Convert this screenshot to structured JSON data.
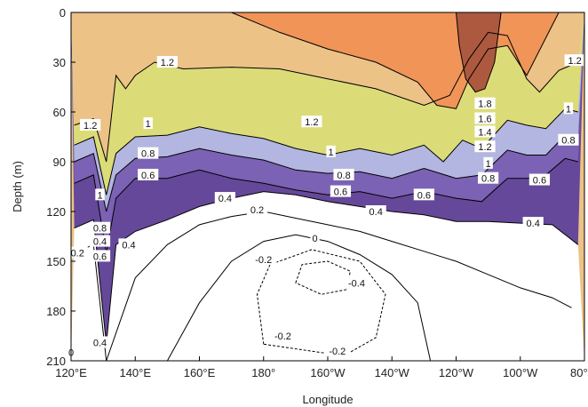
{
  "chart_data": {
    "type": "heatmap",
    "subtype": "filled-contour depth-longitude section",
    "title": "",
    "xlabel": "Longitude",
    "ylabel": "Depth (m)",
    "x_ticks": [
      "120°E",
      "140°E",
      "160°E",
      "180°",
      "160°W",
      "140°W",
      "120°W",
      "100°W",
      "80°W"
    ],
    "y_ticks": [
      "0",
      "30",
      "60",
      "90",
      "120",
      "150",
      "180",
      "210"
    ],
    "xlim_deg_east": [
      120,
      280
    ],
    "ylim_m": [
      0,
      210
    ],
    "y_inverted": true,
    "grid": false,
    "legend": "none",
    "fill_levels": [
      {
        "min": 0.6,
        "max": 0.8,
        "color": "#66489a"
      },
      {
        "min": 0.8,
        "max": 1.0,
        "color": "#7b62b4"
      },
      {
        "min": 1.0,
        "max": 1.2,
        "color": "#b3b6e0"
      },
      {
        "min": 1.2,
        "max": 1.4,
        "color": "#dbdc78"
      },
      {
        "min": 1.4,
        "max": 1.6,
        "color": "#ecc287"
      },
      {
        "min": 1.6,
        "max": 1.8,
        "color": "#f09458"
      },
      {
        "min": 1.8,
        "max": 2.2,
        "color": "#ad5940"
      }
    ],
    "contour_lines": [
      {
        "level": 1.2,
        "depth_by_longitude": [
          [
            121,
            68
          ],
          [
            127,
            64
          ],
          [
            131,
            90
          ],
          [
            134,
            38
          ],
          [
            137,
            46
          ],
          [
            140,
            38
          ],
          [
            146,
            30
          ],
          [
            155,
            34
          ],
          [
            170,
            33
          ],
          [
            185,
            34
          ],
          [
            200,
            40
          ],
          [
            215,
            46
          ],
          [
            230,
            56
          ],
          [
            238,
            50
          ],
          [
            244,
            28
          ],
          [
            250,
            12
          ],
          [
            256,
            14
          ],
          [
            262,
            40
          ],
          [
            266,
            48
          ],
          [
            272,
            35
          ],
          [
            278,
            30
          ]
        ]
      },
      {
        "level": 1.0,
        "depth_by_longitude": [
          [
            121,
            80
          ],
          [
            127,
            75
          ],
          [
            131,
            110
          ],
          [
            134,
            85
          ],
          [
            140,
            75
          ],
          [
            150,
            74
          ],
          [
            160,
            69
          ],
          [
            170,
            73
          ],
          [
            180,
            76
          ],
          [
            190,
            82
          ],
          [
            200,
            86
          ],
          [
            210,
            82
          ],
          [
            220,
            86
          ],
          [
            230,
            80
          ],
          [
            236,
            90
          ],
          [
            242,
            77
          ],
          [
            248,
            82
          ],
          [
            256,
            65
          ],
          [
            262,
            68
          ],
          [
            268,
            70
          ],
          [
            274,
            58
          ],
          [
            278,
            60
          ]
        ]
      },
      {
        "level": 0.8,
        "depth_by_longitude": [
          [
            121,
            90
          ],
          [
            127,
            85
          ],
          [
            131,
            120
          ],
          [
            134,
            98
          ],
          [
            140,
            88
          ],
          [
            150,
            87
          ],
          [
            160,
            82
          ],
          [
            170,
            86
          ],
          [
            180,
            89
          ],
          [
            190,
            95
          ],
          [
            200,
            97
          ],
          [
            210,
            96
          ],
          [
            220,
            100
          ],
          [
            230,
            94
          ],
          [
            240,
            100
          ],
          [
            248,
            98
          ],
          [
            256,
            83
          ],
          [
            262,
            86
          ],
          [
            268,
            86
          ],
          [
            274,
            74
          ],
          [
            278,
            76
          ]
        ]
      },
      {
        "level": 0.6,
        "depth_by_longitude": [
          [
            121,
            103
          ],
          [
            127,
            98
          ],
          [
            131,
            145
          ],
          [
            134,
            112
          ],
          [
            140,
            100
          ],
          [
            150,
            100
          ],
          [
            160,
            95
          ],
          [
            170,
            100
          ],
          [
            180,
            103
          ],
          [
            190,
            107
          ],
          [
            200,
            110
          ],
          [
            210,
            108
          ],
          [
            220,
            112
          ],
          [
            230,
            108
          ],
          [
            240,
            112
          ],
          [
            248,
            114
          ],
          [
            256,
            100
          ],
          [
            262,
            100
          ],
          [
            268,
            98
          ],
          [
            274,
            88
          ],
          [
            278,
            90
          ]
        ]
      },
      {
        "level": 0.4,
        "depth_by_longitude": [
          [
            121,
            130
          ],
          [
            127,
            125
          ],
          [
            131,
            200
          ],
          [
            134,
            140
          ],
          [
            140,
            132
          ],
          [
            150,
            125
          ],
          [
            160,
            117
          ],
          [
            170,
            112
          ],
          [
            180,
            108
          ],
          [
            190,
            110
          ],
          [
            200,
            114
          ],
          [
            210,
            117
          ],
          [
            220,
            120
          ],
          [
            230,
            122
          ],
          [
            240,
            126
          ],
          [
            250,
            126
          ],
          [
            260,
            127
          ],
          [
            270,
            128
          ],
          [
            278,
            140
          ]
        ]
      },
      {
        "level": 0.2,
        "depth_by_longitude": [
          [
            121,
            145
          ],
          [
            127,
            140
          ],
          [
            131,
            210
          ],
          [
            140,
            160
          ],
          [
            150,
            140
          ],
          [
            160,
            128
          ],
          [
            170,
            123
          ],
          [
            180,
            120
          ],
          [
            190,
            124
          ],
          [
            200,
            128
          ],
          [
            210,
            132
          ],
          [
            220,
            138
          ],
          [
            230,
            144
          ],
          [
            240,
            150
          ],
          [
            250,
            158
          ],
          [
            260,
            166
          ],
          [
            270,
            172
          ],
          [
            276,
            178
          ]
        ]
      },
      {
        "level": 0.0,
        "depth_by_longitude": [
          [
            150,
            210
          ],
          [
            160,
            175
          ],
          [
            170,
            150
          ],
          [
            180,
            138
          ],
          [
            190,
            134
          ],
          [
            200,
            138
          ],
          [
            210,
            146
          ],
          [
            220,
            158
          ],
          [
            228,
            175
          ],
          [
            232,
            210
          ]
        ]
      },
      {
        "level": -0.2,
        "depth_by_longitude": [
          [
            180,
            200
          ],
          [
            178,
            170
          ],
          [
            182,
            152
          ],
          [
            195,
            143
          ],
          [
            210,
            150
          ],
          [
            218,
            170
          ],
          [
            215,
            196
          ],
          [
            205,
            207
          ]
        ],
        "dashed": true
      },
      {
        "level": -0.4,
        "depth_by_longitude": [
          [
            190,
            163
          ],
          [
            192,
            152
          ],
          [
            200,
            150
          ],
          [
            207,
            156
          ],
          [
            206,
            167
          ],
          [
            198,
            170
          ]
        ],
        "dashed": true
      }
    ],
    "contour_label_values": [
      "1.8",
      "1.6",
      "1.4",
      "1.2",
      "1",
      "0.8",
      "0.6",
      "0.4",
      "0.2",
      "0",
      "-0.2",
      "-0.4"
    ]
  }
}
